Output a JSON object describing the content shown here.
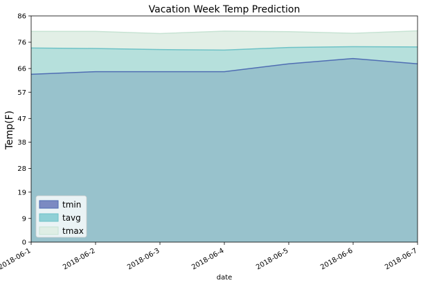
{
  "chart_data": {
    "type": "area",
    "title": "Vacation Week Temp Prediction",
    "xlabel": "date",
    "ylabel": "Temp(F)",
    "x": [
      "2018-06-1",
      "2018-06-2",
      "2018-06-3",
      "2018-06-4",
      "2018-06-5",
      "2018-06-6",
      "2018-06-7"
    ],
    "ylim": [
      0,
      86
    ],
    "yticks": [
      "0",
      "9",
      "19",
      "28",
      "38",
      "47",
      "57",
      "66",
      "76",
      "86"
    ],
    "grid": false,
    "legend_position": "lower-left",
    "series": [
      {
        "name": "tmin",
        "values": [
          63.8,
          64.8,
          64.8,
          64.8,
          67.8,
          69.8,
          67.8
        ],
        "color": "#4f6db3",
        "fill": "#7b8ac2"
      },
      {
        "name": "tavg",
        "values": [
          73.8,
          73.6,
          73.2,
          73.0,
          74.0,
          74.3,
          74.2
        ],
        "color": "#6ec2c6",
        "fill": "#8fd0d6"
      },
      {
        "name": "tmax",
        "values": [
          80.1,
          80.1,
          79.3,
          80.2,
          80.0,
          79.4,
          80.3
        ],
        "color": "#c7e3d3",
        "fill": "#dfeee5"
      }
    ],
    "colors": {
      "base": "#98c2cc",
      "between_min_avg": "#b6e0dc",
      "between_avg_max": "#e2efe6"
    }
  }
}
